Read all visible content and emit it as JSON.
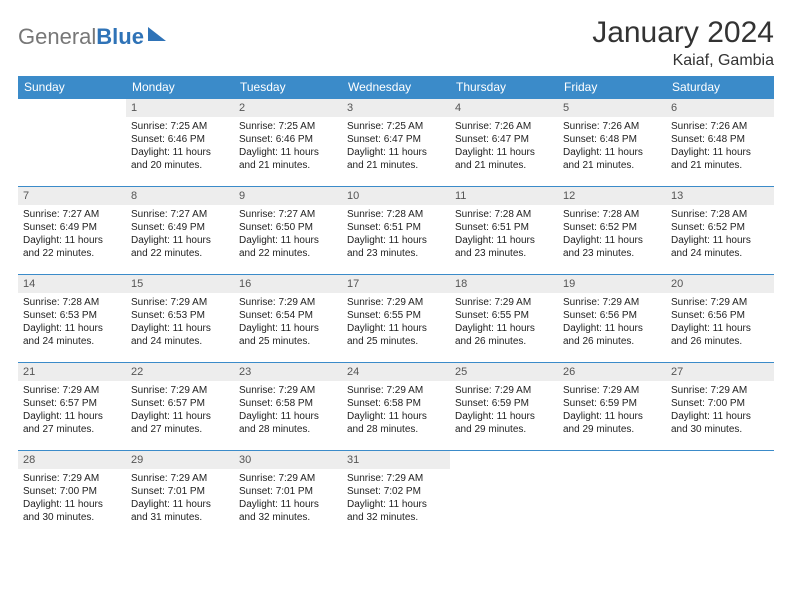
{
  "brand": {
    "part1": "General",
    "part2": "Blue"
  },
  "header": {
    "month_title": "January 2024",
    "location": "Kaiaf, Gambia"
  },
  "colors": {
    "header_bg": "#3b8bc9",
    "header_fg": "#ffffff",
    "daynum_bg": "#ededed",
    "border": "#3b8bc9",
    "body_fg": "#222222"
  },
  "fonts": {
    "title_size": 30,
    "location_size": 16,
    "dow_size": 12,
    "cell_size": 10
  },
  "days_of_week": [
    "Sunday",
    "Monday",
    "Tuesday",
    "Wednesday",
    "Thursday",
    "Friday",
    "Saturday"
  ],
  "leading_blanks": 1,
  "trailing_blanks": 3,
  "days": [
    {
      "n": "1",
      "sr": "Sunrise: 7:25 AM",
      "ss": "Sunset: 6:46 PM",
      "dl": "Daylight: 11 hours and 20 minutes."
    },
    {
      "n": "2",
      "sr": "Sunrise: 7:25 AM",
      "ss": "Sunset: 6:46 PM",
      "dl": "Daylight: 11 hours and 21 minutes."
    },
    {
      "n": "3",
      "sr": "Sunrise: 7:25 AM",
      "ss": "Sunset: 6:47 PM",
      "dl": "Daylight: 11 hours and 21 minutes."
    },
    {
      "n": "4",
      "sr": "Sunrise: 7:26 AM",
      "ss": "Sunset: 6:47 PM",
      "dl": "Daylight: 11 hours and 21 minutes."
    },
    {
      "n": "5",
      "sr": "Sunrise: 7:26 AM",
      "ss": "Sunset: 6:48 PM",
      "dl": "Daylight: 11 hours and 21 minutes."
    },
    {
      "n": "6",
      "sr": "Sunrise: 7:26 AM",
      "ss": "Sunset: 6:48 PM",
      "dl": "Daylight: 11 hours and 21 minutes."
    },
    {
      "n": "7",
      "sr": "Sunrise: 7:27 AM",
      "ss": "Sunset: 6:49 PM",
      "dl": "Daylight: 11 hours and 22 minutes."
    },
    {
      "n": "8",
      "sr": "Sunrise: 7:27 AM",
      "ss": "Sunset: 6:49 PM",
      "dl": "Daylight: 11 hours and 22 minutes."
    },
    {
      "n": "9",
      "sr": "Sunrise: 7:27 AM",
      "ss": "Sunset: 6:50 PM",
      "dl": "Daylight: 11 hours and 22 minutes."
    },
    {
      "n": "10",
      "sr": "Sunrise: 7:28 AM",
      "ss": "Sunset: 6:51 PM",
      "dl": "Daylight: 11 hours and 23 minutes."
    },
    {
      "n": "11",
      "sr": "Sunrise: 7:28 AM",
      "ss": "Sunset: 6:51 PM",
      "dl": "Daylight: 11 hours and 23 minutes."
    },
    {
      "n": "12",
      "sr": "Sunrise: 7:28 AM",
      "ss": "Sunset: 6:52 PM",
      "dl": "Daylight: 11 hours and 23 minutes."
    },
    {
      "n": "13",
      "sr": "Sunrise: 7:28 AM",
      "ss": "Sunset: 6:52 PM",
      "dl": "Daylight: 11 hours and 24 minutes."
    },
    {
      "n": "14",
      "sr": "Sunrise: 7:28 AM",
      "ss": "Sunset: 6:53 PM",
      "dl": "Daylight: 11 hours and 24 minutes."
    },
    {
      "n": "15",
      "sr": "Sunrise: 7:29 AM",
      "ss": "Sunset: 6:53 PM",
      "dl": "Daylight: 11 hours and 24 minutes."
    },
    {
      "n": "16",
      "sr": "Sunrise: 7:29 AM",
      "ss": "Sunset: 6:54 PM",
      "dl": "Daylight: 11 hours and 25 minutes."
    },
    {
      "n": "17",
      "sr": "Sunrise: 7:29 AM",
      "ss": "Sunset: 6:55 PM",
      "dl": "Daylight: 11 hours and 25 minutes."
    },
    {
      "n": "18",
      "sr": "Sunrise: 7:29 AM",
      "ss": "Sunset: 6:55 PM",
      "dl": "Daylight: 11 hours and 26 minutes."
    },
    {
      "n": "19",
      "sr": "Sunrise: 7:29 AM",
      "ss": "Sunset: 6:56 PM",
      "dl": "Daylight: 11 hours and 26 minutes."
    },
    {
      "n": "20",
      "sr": "Sunrise: 7:29 AM",
      "ss": "Sunset: 6:56 PM",
      "dl": "Daylight: 11 hours and 26 minutes."
    },
    {
      "n": "21",
      "sr": "Sunrise: 7:29 AM",
      "ss": "Sunset: 6:57 PM",
      "dl": "Daylight: 11 hours and 27 minutes."
    },
    {
      "n": "22",
      "sr": "Sunrise: 7:29 AM",
      "ss": "Sunset: 6:57 PM",
      "dl": "Daylight: 11 hours and 27 minutes."
    },
    {
      "n": "23",
      "sr": "Sunrise: 7:29 AM",
      "ss": "Sunset: 6:58 PM",
      "dl": "Daylight: 11 hours and 28 minutes."
    },
    {
      "n": "24",
      "sr": "Sunrise: 7:29 AM",
      "ss": "Sunset: 6:58 PM",
      "dl": "Daylight: 11 hours and 28 minutes."
    },
    {
      "n": "25",
      "sr": "Sunrise: 7:29 AM",
      "ss": "Sunset: 6:59 PM",
      "dl": "Daylight: 11 hours and 29 minutes."
    },
    {
      "n": "26",
      "sr": "Sunrise: 7:29 AM",
      "ss": "Sunset: 6:59 PM",
      "dl": "Daylight: 11 hours and 29 minutes."
    },
    {
      "n": "27",
      "sr": "Sunrise: 7:29 AM",
      "ss": "Sunset: 7:00 PM",
      "dl": "Daylight: 11 hours and 30 minutes."
    },
    {
      "n": "28",
      "sr": "Sunrise: 7:29 AM",
      "ss": "Sunset: 7:00 PM",
      "dl": "Daylight: 11 hours and 30 minutes."
    },
    {
      "n": "29",
      "sr": "Sunrise: 7:29 AM",
      "ss": "Sunset: 7:01 PM",
      "dl": "Daylight: 11 hours and 31 minutes."
    },
    {
      "n": "30",
      "sr": "Sunrise: 7:29 AM",
      "ss": "Sunset: 7:01 PM",
      "dl": "Daylight: 11 hours and 32 minutes."
    },
    {
      "n": "31",
      "sr": "Sunrise: 7:29 AM",
      "ss": "Sunset: 7:02 PM",
      "dl": "Daylight: 11 hours and 32 minutes."
    }
  ]
}
